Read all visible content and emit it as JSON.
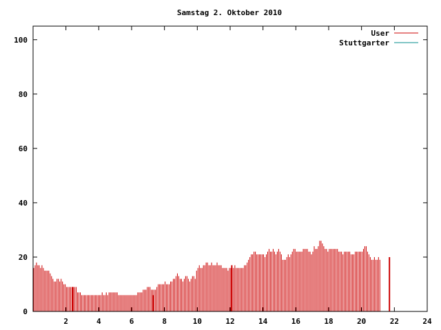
{
  "chart_data": {
    "type": "bar",
    "title": "Samstag 2. Oktober 2010",
    "xlabel": "",
    "ylabel": "",
    "xlim": [
      0,
      24
    ],
    "ylim": [
      0,
      105
    ],
    "x_ticks": [
      2,
      4,
      6,
      8,
      10,
      12,
      14,
      16,
      18,
      20,
      22,
      24
    ],
    "y_ticks": [
      0,
      20,
      40,
      60,
      80,
      100
    ],
    "grid": false,
    "legend_position": "top-right",
    "series": [
      {
        "name": "User",
        "color": "#cc0000",
        "x_start": 0.0,
        "x_step": 0.0833,
        "values": [
          16,
          17,
          18,
          17,
          17,
          16,
          17,
          16,
          15,
          15,
          15,
          15,
          14,
          13,
          12,
          11,
          11,
          12,
          12,
          11,
          12,
          11,
          10,
          10,
          9,
          9,
          9,
          9,
          9,
          9,
          9,
          9,
          7,
          7,
          7,
          6,
          6,
          6,
          6,
          6,
          6,
          6,
          6,
          6,
          6,
          6,
          6,
          6,
          6,
          6,
          7,
          6,
          6,
          7,
          6,
          7,
          7,
          7,
          7,
          7,
          7,
          7,
          6,
          6,
          6,
          6,
          6,
          6,
          6,
          6,
          6,
          6,
          6,
          6,
          6,
          6,
          7,
          7,
          7,
          7,
          8,
          8,
          8,
          9,
          9,
          9,
          8,
          8,
          8,
          8,
          9,
          10,
          10,
          10,
          10,
          10,
          11,
          10,
          10,
          10,
          11,
          11,
          12,
          12,
          13,
          14,
          13,
          12,
          12,
          11,
          12,
          13,
          13,
          12,
          11,
          12,
          13,
          13,
          12,
          15,
          16,
          17,
          16,
          16,
          17,
          17,
          18,
          18,
          17,
          17,
          18,
          17,
          17,
          17,
          18,
          17,
          17,
          17,
          16,
          16,
          16,
          16,
          15,
          16,
          16,
          16,
          16,
          17,
          16,
          16,
          16,
          16,
          16,
          16,
          17,
          17,
          18,
          19,
          20,
          21,
          21,
          22,
          22,
          21,
          21,
          21,
          21,
          21,
          21,
          20,
          21,
          22,
          23,
          22,
          22,
          23,
          22,
          21,
          22,
          23,
          22,
          21,
          19,
          19,
          19,
          20,
          21,
          20,
          21,
          22,
          23,
          23,
          22,
          22,
          22,
          22,
          22,
          23,
          23,
          23,
          23,
          22,
          22,
          21,
          22,
          24,
          23,
          23,
          24,
          26,
          26,
          25,
          24,
          23,
          23,
          22,
          23,
          23,
          23,
          23,
          23,
          23,
          23,
          22,
          22,
          22,
          21,
          22,
          22,
          22,
          22,
          22,
          21,
          21,
          21,
          22,
          22,
          22,
          22,
          22,
          22,
          23,
          24,
          24,
          22,
          21,
          20,
          19,
          19,
          20,
          19,
          19,
          20,
          19
        ],
        "spikes": [
          {
            "x": 2.4,
            "value": 9
          },
          {
            "x": 7.3,
            "value": 6
          },
          {
            "x": 12.1,
            "value": 17
          },
          {
            "x": 21.7,
            "value": 20
          }
        ]
      },
      {
        "name": "Stuttgarter",
        "color": "#008b8b",
        "values": []
      }
    ]
  }
}
